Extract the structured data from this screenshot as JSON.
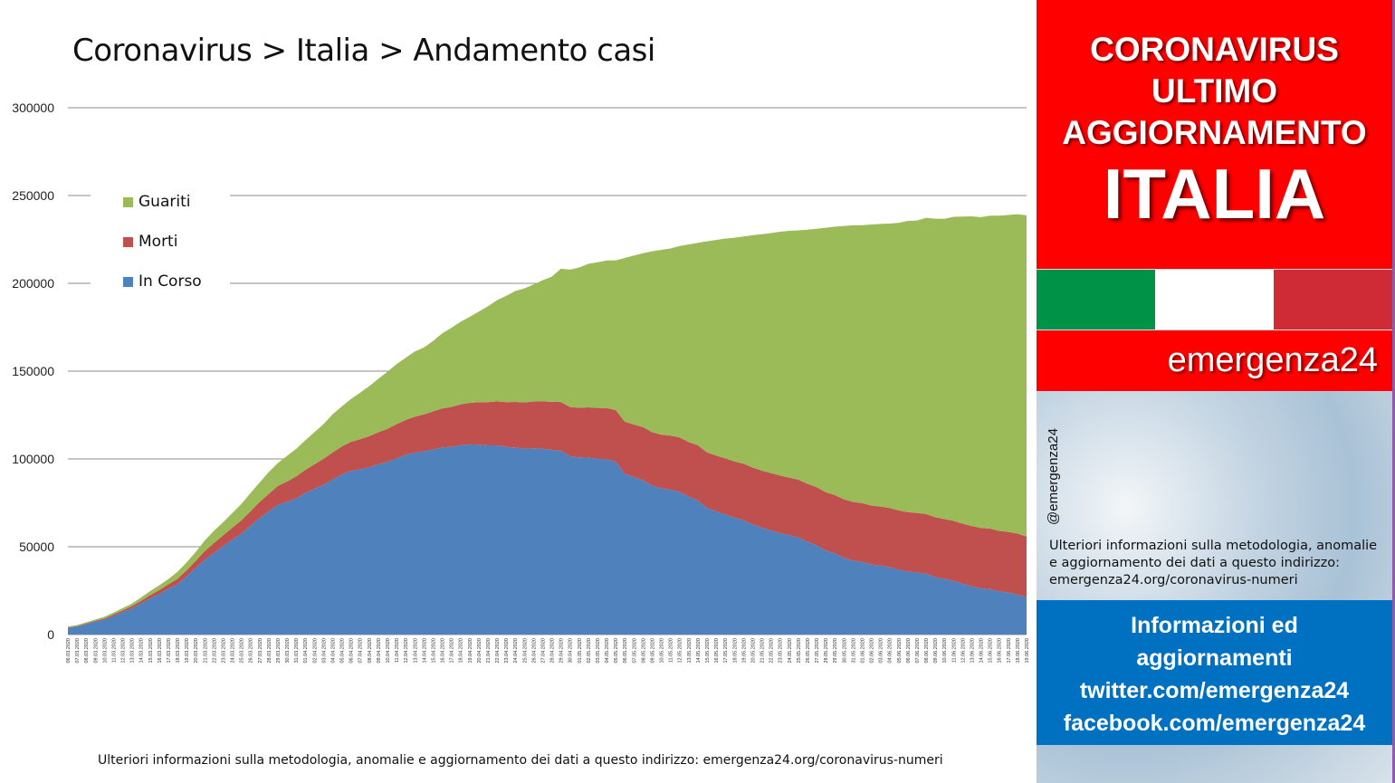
{
  "title": "Coronavirus > Italia > Andamento casi",
  "footnote": "Ulteriori informazioni sulla metodologia, anomalie e aggiornamento dei dati a questo indirizzo: emergenza24.org/coronavirus-numeri",
  "panel": {
    "line1": "CORONAVIRUS",
    "line2": "ULTIMO",
    "line3": "AGGIORNAMENTO",
    "country": "ITALIA",
    "brand": "emergenza24",
    "handle": "@emergenza24",
    "info": "Ulteriori informazioni sulla metodologia, anomalie e aggiornamento dei dati a questo indirizzo: emergenza24.org/coronavirus-numeri",
    "box_line1": "Informazioni ed",
    "box_line2": "aggiornamenti",
    "box_line3": "twitter.com/emergenza24",
    "box_line4": "facebook.com/emergenza24",
    "colors": {
      "red": "#ff0000",
      "blue": "#0070c0",
      "flag_green": "#009246",
      "flag_white": "#ffffff",
      "flag_red": "#ce2b37"
    }
  },
  "chart_data": {
    "type": "area",
    "stacked": true,
    "title": "",
    "xlabel": "",
    "ylabel": "",
    "ylim": [
      0,
      300000
    ],
    "yticks": [
      0,
      50000,
      100000,
      150000,
      200000,
      250000,
      300000
    ],
    "grid": true,
    "legend_position": "top-left",
    "x": [
      "06.03.2020",
      "07.03.2020",
      "08.03.2020",
      "09.03.2020",
      "10.03.2020",
      "11.03.2020",
      "12.03.2020",
      "13.03.2020",
      "14.03.2020",
      "15.03.2020",
      "16.03.2020",
      "17.03.2020",
      "18.03.2020",
      "19.03.2020",
      "20.03.2020",
      "21.03.2020",
      "22.03.2020",
      "23.03.2020",
      "24.03.2020",
      "25.03.2020",
      "26.03.2020",
      "27.03.2020",
      "28.03.2020",
      "29.03.2020",
      "30.03.2020",
      "31.03.2020",
      "01.04.2020",
      "02.04.2020",
      "03.04.2020",
      "04.04.2020",
      "05.04.2020",
      "06.04.2020",
      "07.04.2020",
      "08.04.2020",
      "09.04.2020",
      "10.04.2020",
      "11.04.2020",
      "12.04.2020",
      "13.04.2020",
      "14.04.2020",
      "15.04.2020",
      "16.04.2020",
      "17.04.2020",
      "18.04.2020",
      "19.04.2020",
      "20.04.2020",
      "21.04.2020",
      "22.04.2020",
      "23.04.2020",
      "24.04.2020",
      "25.04.2020",
      "26.04.2020",
      "27.04.2020",
      "28.04.2020",
      "29.04.2020",
      "30.04.2020",
      "01.05.2020",
      "02.05.2020",
      "03.05.2020",
      "04.05.2020",
      "05.05.2020",
      "06.05.2020",
      "07.05.2020",
      "08.05.2020",
      "09.05.2020",
      "10.05.2020",
      "11.05.2020",
      "12.05.2020",
      "13.05.2020",
      "14.05.2020",
      "15.05.2020",
      "16.05.2020",
      "17.05.2020",
      "18.05.2020",
      "19.05.2020",
      "20.05.2020",
      "21.05.2020",
      "22.05.2020",
      "23.05.2020",
      "24.05.2020",
      "25.05.2020",
      "26.05.2020",
      "27.05.2020",
      "28.05.2020",
      "29.05.2020",
      "30.05.2020",
      "31.05.2020",
      "01.06.2020",
      "02.06.2020",
      "03.06.2020",
      "04.06.2020",
      "05.06.2020",
      "06.06.2020",
      "07.06.2020",
      "08.06.2020",
      "09.06.2020",
      "10.06.2020",
      "11.06.2020",
      "12.06.2020",
      "13.06.2020",
      "14.06.2020",
      "15.06.2020",
      "16.06.2020",
      "17.06.2020",
      "18.06.2020",
      "19.06.2020"
    ],
    "series": [
      {
        "name": "In Corso",
        "color": "#4f81bd",
        "values": [
          3900,
          4600,
          6000,
          7400,
          8500,
          10600,
          12800,
          14900,
          17700,
          20600,
          23100,
          26100,
          28700,
          33200,
          37900,
          42700,
          46600,
          50400,
          54000,
          57500,
          62000,
          66400,
          70100,
          73900,
          75500,
          77600,
          80600,
          83000,
          85400,
          88300,
          91200,
          93200,
          94100,
          95300,
          96900,
          98300,
          100300,
          102300,
          103600,
          104300,
          105400,
          106600,
          106900,
          107800,
          108300,
          108200,
          107700,
          107700,
          106800,
          106500,
          105800,
          106100,
          105800,
          105200,
          104700,
          101600,
          100900,
          100700,
          100200,
          99900,
          98500,
          91500,
          89600,
          87900,
          84800,
          83300,
          82500,
          81300,
          78500,
          76400,
          72100,
          70200,
          68400,
          66600,
          65100,
          62800,
          60900,
          59300,
          57800,
          56600,
          55300,
          52900,
          50900,
          47900,
          46200,
          43700,
          42100,
          41300,
          39900,
          39300,
          38400,
          36900,
          35900,
          35300,
          34700,
          32800,
          31700,
          30600,
          28900,
          27500,
          26300,
          25900,
          24600,
          23900,
          22900,
          21200
        ]
      },
      {
        "name": "Morti",
        "color": "#c0504d",
        "values": [
          150,
          230,
          370,
          460,
          630,
          830,
          1020,
          1270,
          1440,
          1810,
          2160,
          2500,
          2980,
          3410,
          4030,
          4830,
          5480,
          6080,
          6820,
          7500,
          8170,
          9130,
          10020,
          10780,
          11590,
          12430,
          13160,
          13920,
          14680,
          15360,
          15890,
          16520,
          17130,
          17670,
          18280,
          18850,
          19470,
          19900,
          20460,
          21070,
          21650,
          22170,
          22750,
          23230,
          23660,
          24110,
          24650,
          25090,
          25550,
          25970,
          26380,
          26640,
          26980,
          27360,
          27680,
          27970,
          28240,
          28710,
          28880,
          29080,
          29320,
          29680,
          29960,
          30200,
          30400,
          30560,
          30740,
          30910,
          31110,
          31370,
          31610,
          31760,
          31910,
          32010,
          32170,
          32330,
          32490,
          32620,
          32740,
          32790,
          32880,
          32960,
          33070,
          33140,
          33230,
          33320,
          33420,
          33480,
          33530,
          33600,
          33690,
          33770,
          33850,
          33900,
          33960,
          34040,
          34110,
          34170,
          34220,
          34300,
          34370,
          34400,
          34450,
          34510,
          34560,
          34610
        ]
      },
      {
        "name": "Guariti",
        "color": "#9bbb59",
        "values": [
          520,
          590,
          620,
          720,
          1000,
          1040,
          1250,
          1440,
          1960,
          2330,
          2750,
          2940,
          4030,
          4440,
          5130,
          6070,
          7020,
          7430,
          8330,
          9360,
          10360,
          11100,
          12380,
          13030,
          14620,
          15730,
          16850,
          18280,
          19760,
          21820,
          22840,
          24390,
          26490,
          28470,
          30450,
          32530,
          34210,
          35430,
          37130,
          38090,
          40160,
          42730,
          44930,
          47060,
          48880,
          51600,
          54540,
          57580,
          60500,
          63120,
          64930,
          66620,
          68940,
          71250,
          75940,
          78250,
          79910,
          81650,
          82880,
          84030,
          85230,
          93240,
          96280,
          99020,
          103030,
          105180,
          106590,
          109040,
          112540,
          115290,
          120200,
          122810,
          125170,
          127330,
          129400,
          132280,
          134560,
          136720,
          138840,
          140480,
          141980,
          144660,
          147100,
          150600,
          152850,
          155630,
          157510,
          158360,
          160090,
          160940,
          161900,
          163780,
          165840,
          166580,
          168650,
          169940,
          170940,
          173090,
          174870,
          176370,
          177010,
          178250,
          179450,
          180540,
          181900,
          182890
        ]
      }
    ]
  }
}
